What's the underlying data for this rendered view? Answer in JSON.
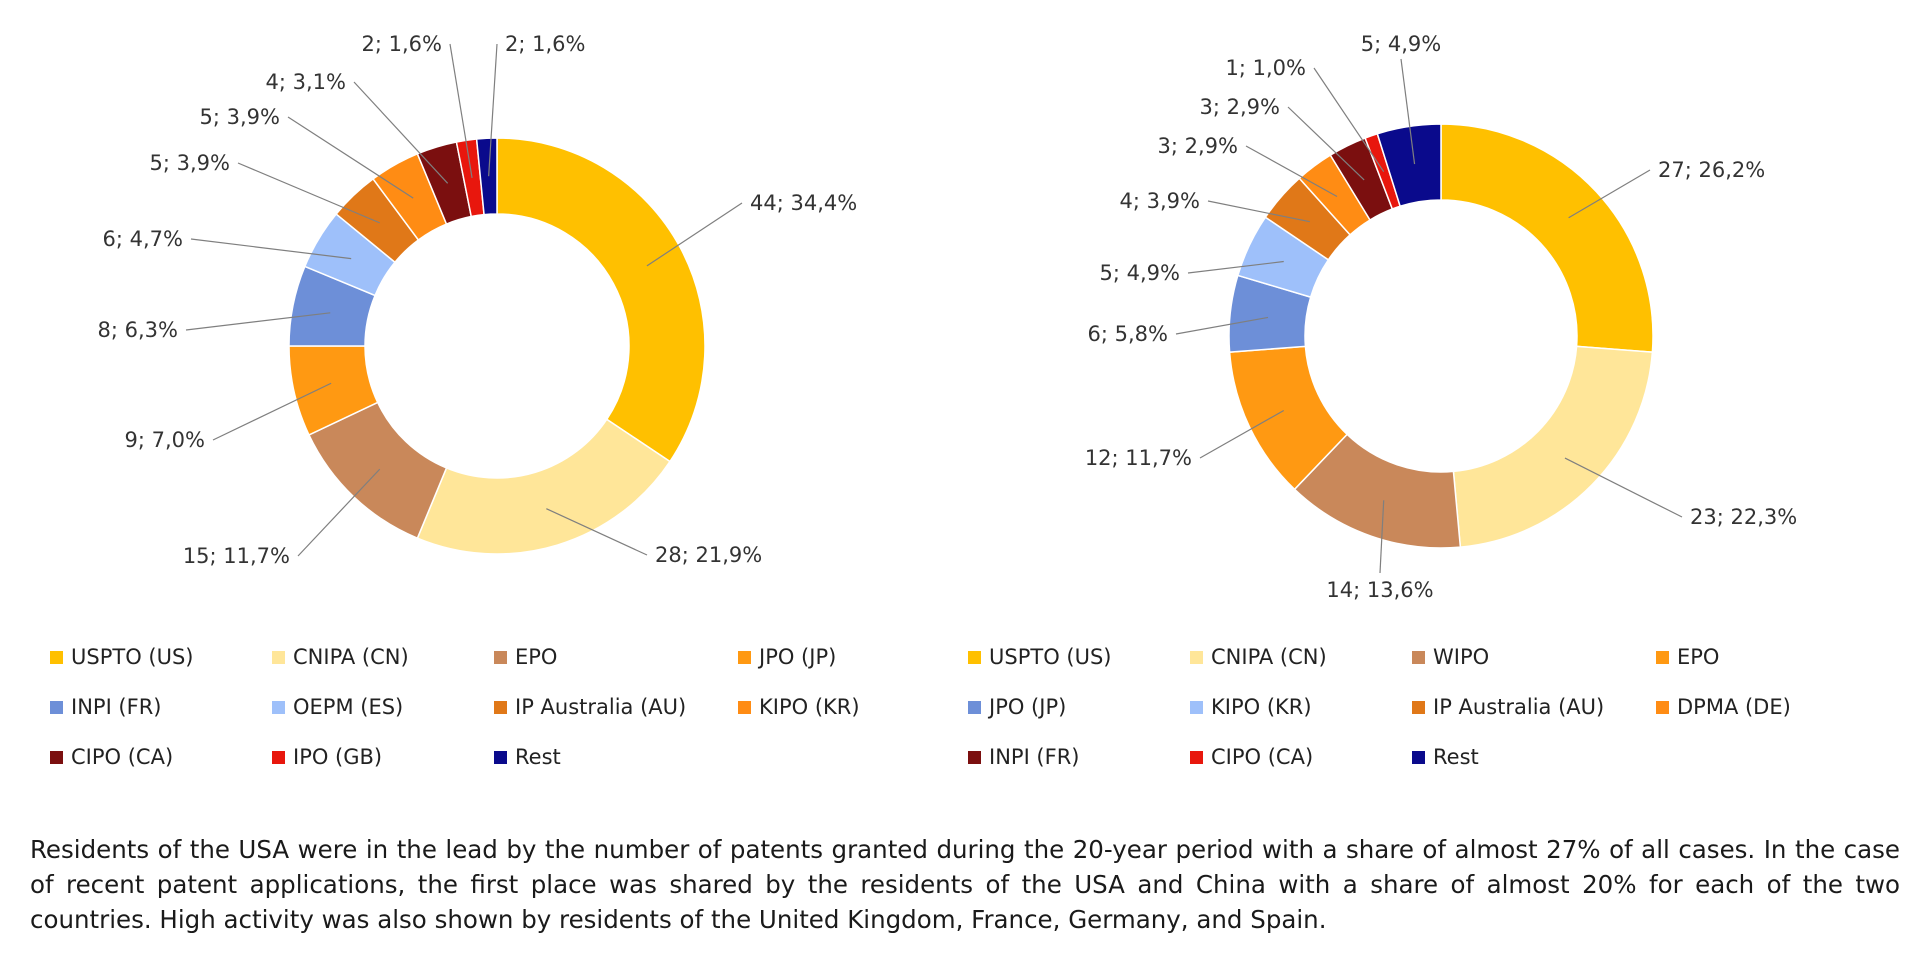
{
  "chart_data": [
    {
      "type": "pie",
      "title": "",
      "donut": true,
      "categories": [
        "USPTO (US)",
        "CNIPA (CN)",
        "EPO",
        "JPO (JP)",
        "INPI (FR)",
        "OEPM (ES)",
        "IP Australia (AU)",
        "KIPO (KR)",
        "CIPO (CA)",
        "IPO (GB)",
        "Rest"
      ],
      "values": [
        44,
        28,
        15,
        9,
        8,
        6,
        5,
        5,
        4,
        2,
        2
      ],
      "data_labels": [
        "44; 34,4%",
        "28; 21,9%",
        "15; 11,7%",
        "9; 7,0%",
        "8; 6,3%",
        "6; 4,7%",
        "5; 3,9%",
        "5; 3,9%",
        "4; 3,1%",
        "2; 1,6%",
        "2; 1,6%"
      ],
      "colors": [
        "#ffc000",
        "#ffe699",
        "#c9885a",
        "#ff9912",
        "#6d8fd8",
        "#9ec0fa",
        "#e07818",
        "#ff8c14",
        "#7b0f0f",
        "#e8170d",
        "#0a0a8c"
      ],
      "legend_position": "bottom"
    },
    {
      "type": "pie",
      "title": "",
      "donut": true,
      "categories": [
        "USPTO (US)",
        "CNIPA (CN)",
        "WIPO",
        "EPO",
        "JPO (JP)",
        "KIPO (KR)",
        "IP Australia (AU)",
        "DPMA (DE)",
        "INPI (FR)",
        "CIPO (CA)",
        "Rest"
      ],
      "values": [
        27,
        23,
        14,
        12,
        6,
        5,
        4,
        3,
        3,
        1,
        5
      ],
      "data_labels": [
        "27; 26,2%",
        "23; 22,3%",
        "14; 13,6%",
        "12; 11,7%",
        "6; 5,8%",
        "5; 4,9%",
        "4; 3,9%",
        "3; 2,9%",
        "3; 2,9%",
        "1; 1,0%",
        "5; 4,9%"
      ],
      "colors": [
        "#ffc000",
        "#ffe699",
        "#c9885a",
        "#ff9912",
        "#6d8fd8",
        "#9ec0fa",
        "#e07818",
        "#ff8c14",
        "#7b0f0f",
        "#e8170d",
        "#0a0a8c"
      ],
      "legend_position": "bottom"
    }
  ],
  "caption": "Residents of the USA were in the lead by the number of patents granted during the 20-year period with a share of almost 27% of all cases. In the case of recent patent applications, the first place was shared by the residents of the USA and China with a share of almost 20% for each of the two countries. High activity was also shown by residents of the United Kingdom, France, Germany, and Spain."
}
